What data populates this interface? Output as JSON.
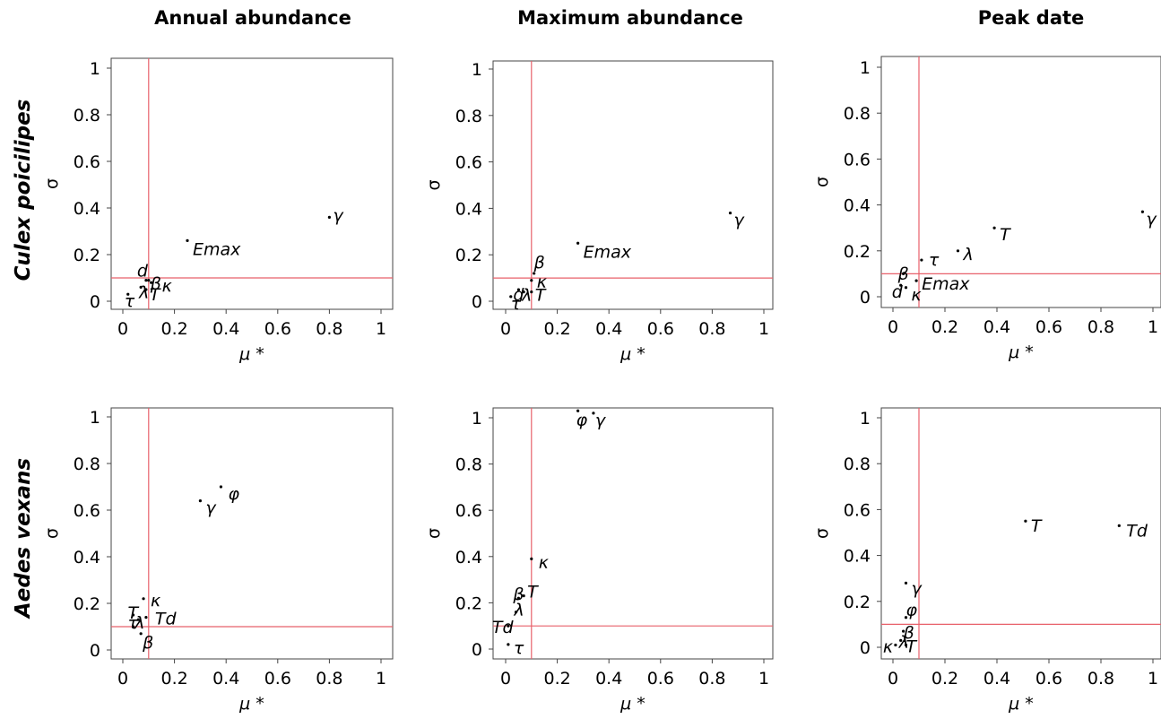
{
  "column_titles": [
    "Annual abundance",
    "Maximum abundance",
    "Peak date"
  ],
  "row_titles": [
    "Culex poicilipes",
    "Aedes vexans"
  ],
  "colors": {
    "axis": "#000000",
    "threshold_line": "#e8606a",
    "point": "#000000"
  },
  "chart_data": [
    {
      "type": "scatter",
      "row": 0,
      "col": 0,
      "xlabel": "μ *",
      "ylabel": "σ",
      "xlim": [
        0,
        1
      ],
      "ylim": [
        0,
        1
      ],
      "xticks": [
        "0",
        "0.2",
        "0.4",
        "0.6",
        "0.8",
        "1"
      ],
      "yticks": [
        "0",
        "0.2",
        "0.4",
        "0.6",
        "0.8",
        "1"
      ],
      "threshold_x": 0.1,
      "threshold_y": 0.1,
      "grid": false,
      "points": [
        {
          "label": "γ",
          "x": 0.8,
          "y": 0.36
        },
        {
          "label": "Emax",
          "x": 0.25,
          "y": 0.26
        },
        {
          "label": "d",
          "x": 0.09,
          "y": 0.09
        },
        {
          "label": "β",
          "x": 0.1,
          "y": 0.09
        },
        {
          "label": "κ",
          "x": 0.11,
          "y": 0.08
        },
        {
          "label": "λ",
          "x": 0.07,
          "y": 0.06
        },
        {
          "label": "T",
          "x": 0.09,
          "y": 0.05
        },
        {
          "label": "τ",
          "x": 0.02,
          "y": 0.03
        }
      ]
    },
    {
      "type": "scatter",
      "row": 0,
      "col": 1,
      "xlabel": "μ *",
      "ylabel": "σ",
      "xlim": [
        0,
        1
      ],
      "ylim": [
        0,
        1
      ],
      "xticks": [
        "0",
        "0.2",
        "0.4",
        "0.6",
        "0.8",
        "1"
      ],
      "yticks": [
        "0",
        "0.2",
        "0.4",
        "0.6",
        "0.8",
        "1"
      ],
      "threshold_x": 0.1,
      "threshold_y": 0.1,
      "grid": false,
      "points": [
        {
          "label": "γ",
          "x": 0.87,
          "y": 0.38
        },
        {
          "label": "Emax",
          "x": 0.28,
          "y": 0.25
        },
        {
          "label": "β",
          "x": 0.11,
          "y": 0.12
        },
        {
          "label": "κ",
          "x": 0.1,
          "y": 0.09
        },
        {
          "label": "d",
          "x": 0.05,
          "y": 0.05
        },
        {
          "label": "λ",
          "x": 0.07,
          "y": 0.04
        },
        {
          "label": "T",
          "x": 0.1,
          "y": 0.04
        },
        {
          "label": "τ",
          "x": 0.02,
          "y": 0.02
        }
      ]
    },
    {
      "type": "scatter",
      "row": 0,
      "col": 2,
      "xlabel": "μ *",
      "ylabel": "σ",
      "xlim": [
        0,
        1
      ],
      "ylim": [
        0,
        1
      ],
      "xticks": [
        "0",
        "0.2",
        "0.4",
        "0.6",
        "0.8",
        "1"
      ],
      "yticks": [
        "0",
        "0.2",
        "0.4",
        "0.6",
        "0.8",
        "1"
      ],
      "threshold_x": 0.1,
      "threshold_y": 0.1,
      "grid": false,
      "points": [
        {
          "label": "γ",
          "x": 0.96,
          "y": 0.37
        },
        {
          "label": "T",
          "x": 0.39,
          "y": 0.3
        },
        {
          "label": "λ",
          "x": 0.25,
          "y": 0.2
        },
        {
          "label": "τ",
          "x": 0.11,
          "y": 0.16
        },
        {
          "label": "β",
          "x": 0.04,
          "y": 0.1
        },
        {
          "label": "Emax",
          "x": 0.09,
          "y": 0.07
        },
        {
          "label": "d",
          "x": 0.03,
          "y": 0.05
        },
        {
          "label": "κ",
          "x": 0.05,
          "y": 0.04
        }
      ]
    },
    {
      "type": "scatter",
      "row": 1,
      "col": 0,
      "xlabel": "μ *",
      "ylabel": "σ",
      "xlim": [
        0,
        1
      ],
      "ylim": [
        0,
        1
      ],
      "xticks": [
        "0",
        "0.2",
        "0.4",
        "0.6",
        "0.8",
        "1"
      ],
      "yticks": [
        "0",
        "0.2",
        "0.4",
        "0.6",
        "0.8",
        "1"
      ],
      "threshold_x": 0.1,
      "threshold_y": 0.1,
      "grid": false,
      "points": [
        {
          "label": "φ",
          "x": 0.38,
          "y": 0.7
        },
        {
          "label": "γ",
          "x": 0.3,
          "y": 0.64
        },
        {
          "label": "κ",
          "x": 0.08,
          "y": 0.22
        },
        {
          "label": "Td",
          "x": 0.09,
          "y": 0.14
        },
        {
          "label": "λ",
          "x": 0.06,
          "y": 0.13
        },
        {
          "label": "T",
          "x": 0.04,
          "y": 0.15
        },
        {
          "label": "τ",
          "x": 0.04,
          "y": 0.1
        },
        {
          "label": "β",
          "x": 0.07,
          "y": 0.07
        }
      ]
    },
    {
      "type": "scatter",
      "row": 1,
      "col": 1,
      "xlabel": "μ *",
      "ylabel": "σ",
      "xlim": [
        0,
        1
      ],
      "ylim": [
        0,
        1
      ],
      "xticks": [
        "0",
        "0.2",
        "0.4",
        "0.6",
        "0.8",
        "1"
      ],
      "yticks": [
        "0",
        "0.2",
        "0.4",
        "0.6",
        "0.8",
        "1"
      ],
      "threshold_x": 0.1,
      "threshold_y": 0.1,
      "grid": false,
      "points": [
        {
          "label": "φ",
          "x": 0.28,
          "y": 1.03
        },
        {
          "label": "γ",
          "x": 0.34,
          "y": 1.02
        },
        {
          "label": "κ",
          "x": 0.1,
          "y": 0.39
        },
        {
          "label": "T",
          "x": 0.07,
          "y": 0.23
        },
        {
          "label": "β",
          "x": 0.05,
          "y": 0.22
        },
        {
          "label": "λ",
          "x": 0.04,
          "y": 0.16
        },
        {
          "label": "Td",
          "x": 0.01,
          "y": 0.1
        },
        {
          "label": "τ",
          "x": 0.01,
          "y": 0.02
        }
      ]
    },
    {
      "type": "scatter",
      "row": 1,
      "col": 2,
      "xlabel": "μ *",
      "ylabel": "σ",
      "xlim": [
        0,
        1
      ],
      "ylim": [
        0,
        1
      ],
      "xticks": [
        "0",
        "0.2",
        "0.4",
        "0.6",
        "0.8",
        "1"
      ],
      "yticks": [
        "0",
        "0.2",
        "0.4",
        "0.6",
        "0.8",
        "1"
      ],
      "threshold_x": 0.1,
      "threshold_y": 0.1,
      "grid": false,
      "points": [
        {
          "label": "T",
          "x": 0.51,
          "y": 0.55
        },
        {
          "label": "Td",
          "x": 0.87,
          "y": 0.53
        },
        {
          "label": "γ",
          "x": 0.05,
          "y": 0.28
        },
        {
          "label": "φ",
          "x": 0.05,
          "y": 0.13
        },
        {
          "label": "β",
          "x": 0.04,
          "y": 0.07
        },
        {
          "label": "λ",
          "x": 0.03,
          "y": 0.03
        },
        {
          "label": "T",
          "x": 0.05,
          "y": 0.01
        },
        {
          "label": "κ",
          "x": 0.01,
          "y": 0.01
        }
      ]
    }
  ]
}
